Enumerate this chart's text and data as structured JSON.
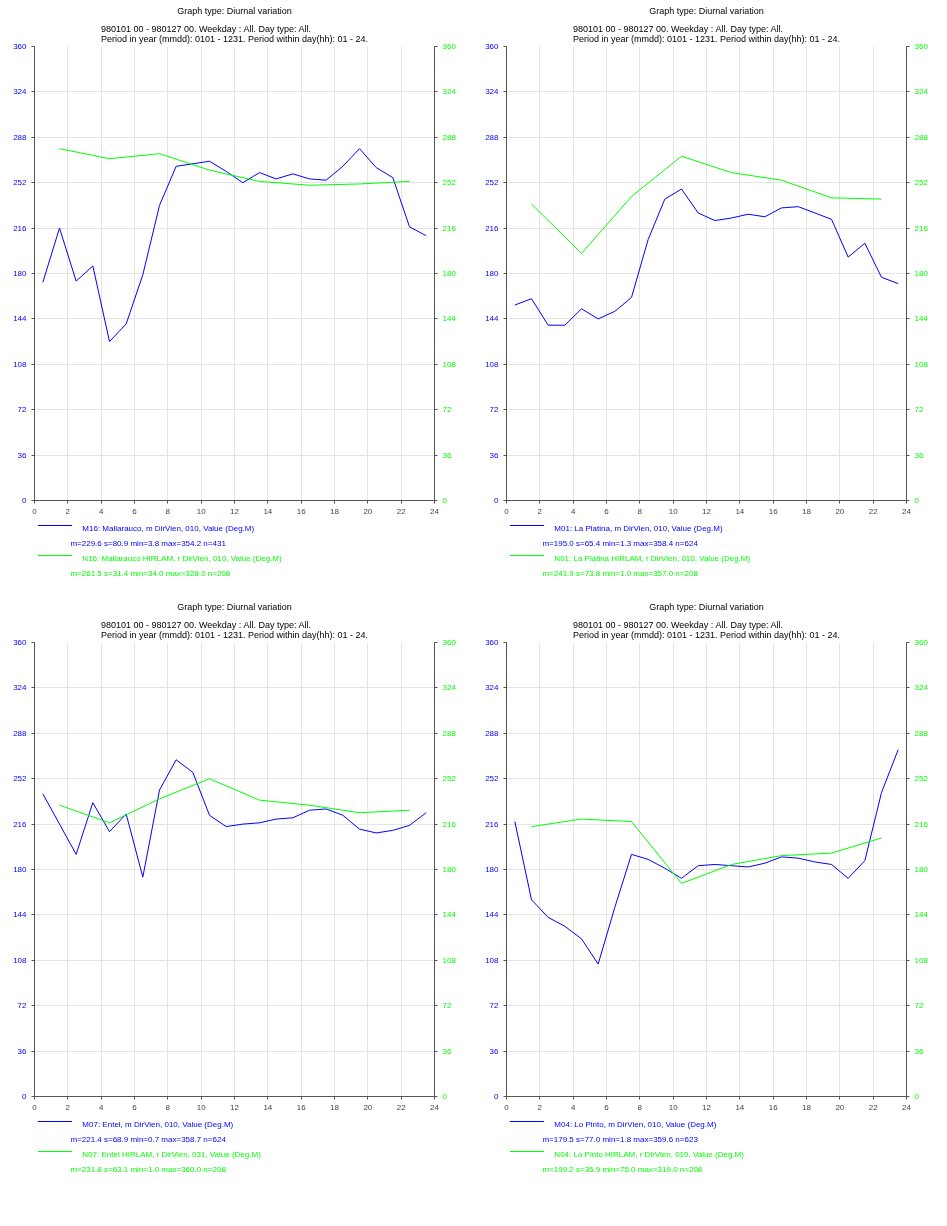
{
  "chart_data": [
    {
      "type": "line",
      "title": "Graph type: Diurnal variation",
      "subtitle": "980101 00 - 980127 00. Weekday : All. Day type: All.\nPeriod in year (mmdd): 0101 - 1231. Period within day(hh): 01 - 24.",
      "xlim": [
        0,
        24
      ],
      "xticks": [
        0,
        2,
        4,
        6,
        8,
        10,
        12,
        14,
        16,
        18,
        20,
        22,
        24
      ],
      "ylim": [
        0,
        360
      ],
      "yticks": [
        0,
        36,
        72,
        108,
        144,
        180,
        216,
        252,
        288,
        324,
        360
      ],
      "y2lim": [
        0,
        360
      ],
      "y2ticks": [
        0,
        36,
        72,
        108,
        144,
        180,
        216,
        252,
        288,
        324,
        360
      ],
      "grid": true,
      "legend": "bottom",
      "series": [
        {
          "name": "M16: Mallarauco, m DirVien, 010, Value (Deg.M)",
          "color": "#0000ff",
          "x": [
            0.5,
            1.5,
            2.5,
            3.5,
            4.5,
            5.5,
            6.5,
            7.5,
            8.5,
            9.5,
            10.5,
            11.5,
            12.5,
            13.5,
            14.5,
            15.5,
            16.5,
            17.5,
            18.5,
            19.5,
            20.5,
            21.5,
            22.5,
            23.5
          ],
          "values": [
            173,
            216,
            174,
            186,
            126,
            140,
            179,
            234,
            265,
            267,
            269,
            261,
            252,
            260,
            255,
            259,
            255,
            254,
            265,
            279,
            264,
            256,
            217,
            210
          ]
        },
        {
          "name": "N16: Mallarauco HIRLAM, r DirVien, 010, Value (Deg.M)",
          "color": "#00ff00",
          "axis": "y2",
          "x": [
            1.5,
            4.5,
            7.5,
            10.5,
            13.5,
            16.5,
            19.5,
            22.5
          ],
          "values": [
            279,
            271,
            275,
            262,
            253,
            250,
            251,
            253
          ]
        }
      ],
      "annotations": [
        "m=229.6 s=80.9 min=3.8 max=354.2 n=431",
        "m=261.5 s=31.4 min=34.0 max=328.0 n=208"
      ]
    },
    {
      "type": "line",
      "title": "Graph type: Diurnal variation",
      "subtitle": "980101 00 - 980127 00. Weekday : All. Day type: All.\nPeriod in year (mmdd): 0101 - 1231. Period within day(hh): 01 - 24.",
      "xlim": [
        0,
        24
      ],
      "xticks": [
        0,
        2,
        4,
        6,
        8,
        10,
        12,
        14,
        16,
        18,
        20,
        22,
        24
      ],
      "ylim": [
        0,
        360
      ],
      "yticks": [
        0,
        36,
        72,
        108,
        144,
        180,
        216,
        252,
        288,
        324,
        360
      ],
      "y2lim": [
        0,
        360
      ],
      "y2ticks": [
        0,
        36,
        72,
        108,
        144,
        180,
        216,
        252,
        288,
        324,
        360
      ],
      "grid": true,
      "legend": "bottom",
      "series": [
        {
          "name": "M01: La Platina, m DirVien, 010, Value (Deg.M)",
          "color": "#0000ff",
          "x": [
            0.5,
            1.5,
            2.5,
            3.5,
            4.5,
            5.5,
            6.5,
            7.5,
            8.5,
            9.5,
            10.5,
            11.5,
            12.5,
            13.5,
            14.5,
            15.5,
            16.5,
            17.5,
            18.5,
            19.5,
            20.5,
            21.5,
            22.5,
            23.5
          ],
          "values": [
            155,
            160,
            139,
            139,
            152,
            144,
            150,
            161,
            207,
            239,
            247,
            228,
            222,
            224,
            227,
            225,
            232,
            233,
            228,
            223,
            193,
            204,
            177,
            172
          ]
        },
        {
          "name": "N01: La Platina HIRLAM, r DirVien, 010, Value (Deg.M)",
          "color": "#00ff00",
          "axis": "y2",
          "x": [
            1.5,
            4.5,
            7.5,
            10.5,
            13.5,
            16.5,
            19.5,
            22.5
          ],
          "values": [
            235,
            196,
            241,
            273,
            260,
            254,
            240,
            239
          ]
        }
      ],
      "annotations": [
        "m=195.0 s=65.4 min=1.3 max=358.4 n=624",
        "m=241.9 s=73.8 min=1.0 max=357.0 n=208"
      ]
    },
    {
      "type": "line",
      "title": "Graph type: Diurnal variation",
      "subtitle": "980101 00 - 980127 00. Weekday : All. Day type: All.\nPeriod in year (mmdd): 0101 - 1231. Period within day(hh): 01 - 24.",
      "xlim": [
        0,
        24
      ],
      "xticks": [
        0,
        2,
        4,
        6,
        8,
        10,
        12,
        14,
        16,
        18,
        20,
        22,
        24
      ],
      "ylim": [
        0,
        360
      ],
      "yticks": [
        0,
        36,
        72,
        108,
        144,
        180,
        216,
        252,
        288,
        324,
        360
      ],
      "y2lim": [
        0,
        360
      ],
      "y2ticks": [
        0,
        36,
        72,
        108,
        144,
        180,
        216,
        252,
        288,
        324,
        360
      ],
      "grid": true,
      "legend": "bottom",
      "series": [
        {
          "name": "M07: Entel, m DirVien, 010, Value (Deg.M)",
          "color": "#0000ff",
          "x": [
            0.5,
            1.5,
            2.5,
            3.5,
            4.5,
            5.5,
            6.5,
            7.5,
            8.5,
            9.5,
            10.5,
            11.5,
            12.5,
            13.5,
            14.5,
            15.5,
            16.5,
            17.5,
            18.5,
            19.5,
            20.5,
            21.5,
            22.5,
            23.5
          ],
          "values": [
            240,
            216,
            192,
            233,
            210,
            224,
            174,
            243,
            267,
            257,
            223,
            214,
            216,
            217,
            220,
            221,
            227,
            228,
            223,
            212,
            209,
            211,
            215,
            225
          ]
        },
        {
          "name": "N07: Entel HIRLAM, r DirVien, 031, Value (Deg.M)",
          "color": "#00ff00",
          "axis": "y2",
          "x": [
            1.5,
            4.5,
            7.5,
            10.5,
            13.5,
            16.5,
            19.5,
            22.5
          ],
          "values": [
            231,
            217,
            236,
            252,
            235,
            231,
            225,
            227
          ]
        }
      ],
      "annotations": [
        "m=221.4 s=68.9 min=0.7 max=358.7 n=624",
        "m=231.8 s=63.1 min=1.0 max=360.0 n=208"
      ]
    },
    {
      "type": "line",
      "title": "Graph type: Diurnal variation",
      "subtitle": "980101 00 - 980127 00. Weekday : All. Day type: All.\nPeriod in year (mmdd): 0101 - 1231. Period within day(hh): 01 - 24.",
      "xlim": [
        0,
        24
      ],
      "xticks": [
        0,
        2,
        4,
        6,
        8,
        10,
        12,
        14,
        16,
        18,
        20,
        22,
        24
      ],
      "ylim": [
        0,
        360
      ],
      "yticks": [
        0,
        36,
        72,
        108,
        144,
        180,
        216,
        252,
        288,
        324,
        360
      ],
      "y2lim": [
        0,
        360
      ],
      "y2ticks": [
        0,
        36,
        72,
        108,
        144,
        180,
        216,
        252,
        288,
        324,
        360
      ],
      "grid": true,
      "legend": "bottom",
      "series": [
        {
          "name": "M04: Lo Pinto, m DirVien, 010, Value (Deg.M)",
          "color": "#0000ff",
          "x": [
            0.5,
            1.5,
            2.5,
            3.5,
            4.5,
            5.5,
            6.5,
            7.5,
            8.5,
            9.5,
            10.5,
            11.5,
            12.5,
            13.5,
            14.5,
            15.5,
            16.5,
            17.5,
            18.5,
            19.5,
            20.5,
            21.5,
            22.5,
            23.5
          ],
          "values": [
            218,
            156,
            142,
            135,
            125,
            105,
            150,
            192,
            188,
            181,
            173,
            183,
            184,
            183,
            182,
            185,
            190,
            189,
            186,
            184,
            173,
            187,
            241,
            275
          ]
        },
        {
          "name": "N04: Lo Pinto HIRLAM, r DirVien, 010, Value (Deg.M)",
          "color": "#00ff00",
          "axis": "y2",
          "x": [
            1.5,
            4.5,
            7.5,
            10.5,
            13.5,
            16.5,
            19.5,
            22.5
          ],
          "values": [
            214,
            220,
            218,
            169,
            184,
            191,
            193,
            205
          ]
        }
      ],
      "annotations": [
        "m=179.5 s=77.0 min=1.8 max=359.6 n=623",
        "m=199.2 s=35.9 min=75.0 max=319.0 n=208"
      ]
    }
  ]
}
